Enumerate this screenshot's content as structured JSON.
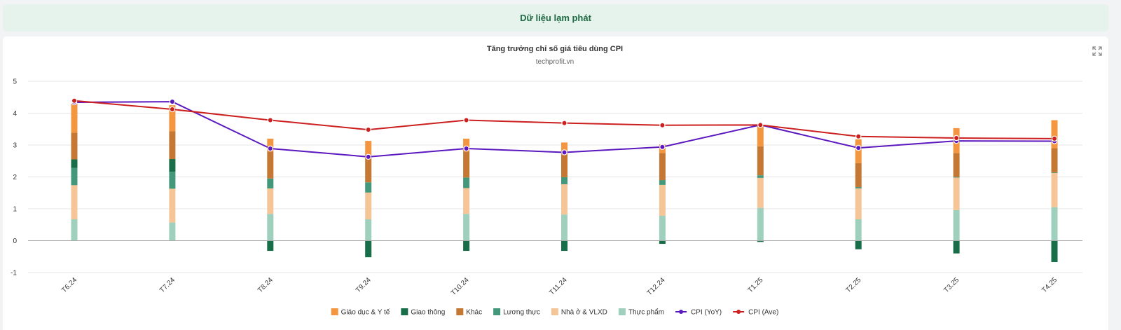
{
  "header": {
    "title": "Dữ liệu lạm phát"
  },
  "chart_data": {
    "type": "bar",
    "stacked": true,
    "title": "Tăng trưởng chỉ số giá tiêu dùng CPI",
    "subtitle": "techprofit.vn",
    "categories": [
      "T6.24",
      "T7.24",
      "T8.24",
      "T9.24",
      "T10.24",
      "T11.24",
      "T12.24",
      "T1.25",
      "T2.25",
      "T3.25",
      "T4.25"
    ],
    "ylim": [
      -1,
      5
    ],
    "yticks": [
      5,
      4,
      3,
      2,
      1,
      0,
      -1
    ],
    "grid": true,
    "legend_position": "bottom",
    "series": [
      {
        "name": "Thực phẩm",
        "kind": "bar",
        "color": "#9fcfbd",
        "values": [
          0.67,
          0.57,
          0.84,
          0.67,
          0.84,
          0.82,
          0.78,
          1.03,
          0.67,
          0.96,
          1.05
        ]
      },
      {
        "name": "Nhà ở & VLXD",
        "kind": "bar",
        "color": "#f5c497",
        "values": [
          1.07,
          1.06,
          0.8,
          0.84,
          0.81,
          0.95,
          0.97,
          0.94,
          0.97,
          1.02,
          1.07
        ]
      },
      {
        "name": "Lương thực",
        "kind": "bar",
        "color": "#43977a",
        "values": [
          0.54,
          0.53,
          0.31,
          0.32,
          0.33,
          0.22,
          0.15,
          0.08,
          0.04,
          0.02,
          0.02
        ]
      },
      {
        "name": "Giao thông",
        "kind": "bar",
        "color": "#176e48",
        "values": [
          0.27,
          0.4,
          -0.32,
          -0.52,
          -0.32,
          -0.32,
          -0.1,
          -0.04,
          -0.27,
          -0.4,
          -0.67
        ]
      },
      {
        "name": "Khác",
        "kind": "bar",
        "color": "#c47834",
        "values": [
          0.84,
          0.87,
          0.85,
          0.81,
          0.82,
          0.72,
          0.85,
          0.91,
          0.75,
          0.75,
          0.76
        ]
      },
      {
        "name": "Giáo dục & Y tế",
        "kind": "bar",
        "color": "#f3963f",
        "values": [
          0.91,
          0.82,
          0.4,
          0.49,
          0.4,
          0.37,
          0.27,
          0.66,
          0.75,
          0.78,
          0.88
        ]
      },
      {
        "name": "CPI (YoY)",
        "kind": "line",
        "color": "#5b18bf",
        "values": [
          4.34,
          4.36,
          2.89,
          2.63,
          2.89,
          2.77,
          2.94,
          3.63,
          2.91,
          3.13,
          3.12
        ]
      },
      {
        "name": "CPI (Ave)",
        "kind": "line",
        "color": "#cc1f1f",
        "values": [
          4.39,
          4.12,
          3.78,
          3.48,
          3.78,
          3.69,
          3.62,
          3.63,
          3.27,
          3.22,
          3.2
        ]
      }
    ],
    "legend_order": [
      "Giáo dục & Y tế",
      "Giao thông",
      "Khác",
      "Lương thực",
      "Nhà ở & VLXD",
      "Thực phẩm",
      "CPI (YoY)",
      "CPI (Ave)"
    ]
  }
}
